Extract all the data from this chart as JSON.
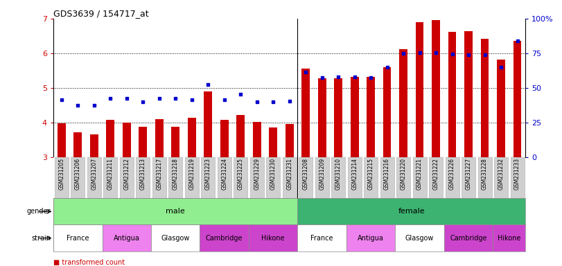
{
  "title": "GDS3639 / 154717_at",
  "samples": [
    "GSM231205",
    "GSM231206",
    "GSM231207",
    "GSM231211",
    "GSM231212",
    "GSM231213",
    "GSM231217",
    "GSM231218",
    "GSM231219",
    "GSM231223",
    "GSM231224",
    "GSM231225",
    "GSM231229",
    "GSM231230",
    "GSM231231",
    "GSM231208",
    "GSM231209",
    "GSM231210",
    "GSM231214",
    "GSM231215",
    "GSM231216",
    "GSM231220",
    "GSM231221",
    "GSM231222",
    "GSM231226",
    "GSM231227",
    "GSM231228",
    "GSM231232",
    "GSM231233"
  ],
  "bar_values": [
    3.97,
    3.72,
    3.65,
    4.08,
    3.99,
    3.87,
    4.1,
    3.88,
    4.13,
    4.9,
    4.08,
    4.22,
    4.01,
    3.85,
    3.95,
    5.55,
    5.28,
    5.28,
    5.32,
    5.32,
    5.6,
    6.12,
    6.9,
    6.95,
    6.62,
    6.63,
    6.42,
    5.82,
    6.35
  ],
  "dot_values": [
    4.65,
    4.5,
    4.5,
    4.7,
    4.7,
    4.6,
    4.7,
    4.7,
    4.65,
    5.1,
    4.65,
    4.82,
    4.6,
    4.6,
    4.62,
    5.45,
    5.3,
    5.32,
    5.32,
    5.3,
    5.6,
    6.0,
    6.02,
    6.02,
    5.98,
    5.95,
    5.95,
    5.6,
    6.35
  ],
  "bar_color": "#cc0000",
  "dot_color": "#0000cc",
  "ylim": [
    3.0,
    7.0
  ],
  "y2lim": [
    0,
    100
  ],
  "y2ticks": [
    0,
    25,
    50,
    75,
    100
  ],
  "y2ticklabels": [
    "0",
    "25",
    "50",
    "75",
    "100%"
  ],
  "yticks": [
    3,
    4,
    5,
    6,
    7
  ],
  "grid_lines": [
    4,
    5,
    6
  ],
  "male_span": [
    0,
    14
  ],
  "female_span": [
    15,
    28
  ],
  "male_color": "#90ee90",
  "female_color": "#3cb371",
  "strains": [
    {
      "label": "France",
      "start": 0,
      "end": 2,
      "color": "#ffffff"
    },
    {
      "label": "Antigua",
      "start": 3,
      "end": 5,
      "color": "#ee82ee"
    },
    {
      "label": "Glasgow",
      "start": 6,
      "end": 8,
      "color": "#ffffff"
    },
    {
      "label": "Cambridge",
      "start": 9,
      "end": 11,
      "color": "#cc44cc"
    },
    {
      "label": "Hikone",
      "start": 12,
      "end": 14,
      "color": "#cc44cc"
    },
    {
      "label": "France",
      "start": 15,
      "end": 17,
      "color": "#ffffff"
    },
    {
      "label": "Antigua",
      "start": 18,
      "end": 20,
      "color": "#ee82ee"
    },
    {
      "label": "Glasgow",
      "start": 21,
      "end": 23,
      "color": "#ffffff"
    },
    {
      "label": "Cambridge",
      "start": 24,
      "end": 26,
      "color": "#cc44cc"
    },
    {
      "label": "Hikone",
      "start": 27,
      "end": 28,
      "color": "#cc44cc"
    }
  ],
  "xtick_bg": "#d0d0d0"
}
